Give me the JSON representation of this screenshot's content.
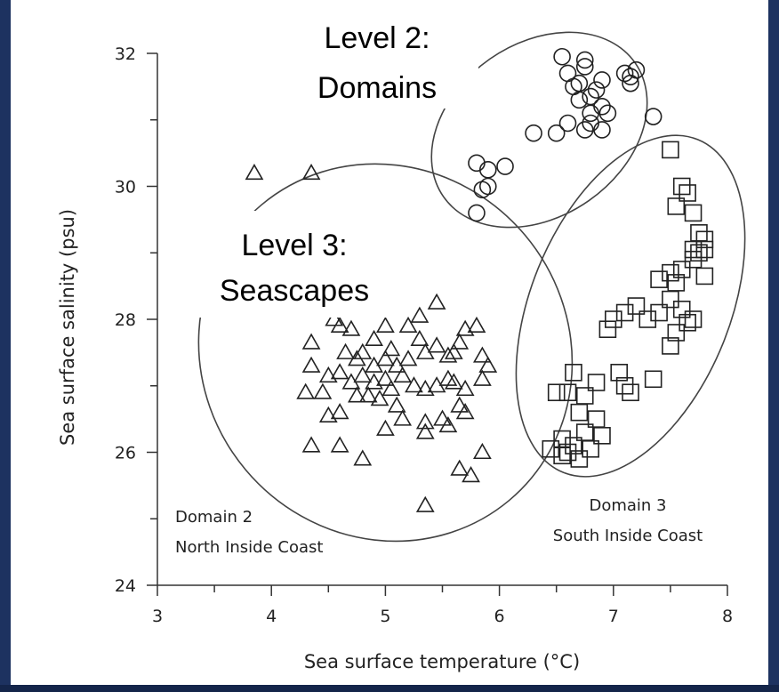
{
  "chart_data": {
    "type": "scatter",
    "xlabel": "Sea surface temperature (°C)",
    "ylabel": "Sea surface salinity (psu)",
    "xlim": [
      3,
      8
    ],
    "ylim": [
      24,
      32
    ],
    "xticks": [
      "3",
      "4",
      "5",
      "6",
      "7",
      "8"
    ],
    "yticks": [
      "24",
      "26",
      "28",
      "30",
      "32"
    ],
    "grid": false,
    "overlay_labels": {
      "level2_line1": "Level 2:",
      "level2_line2": "Domains",
      "level3_line1": "Level 3:",
      "level3_line2": "Seascapes"
    },
    "domain_labels": {
      "domain2_line1": "Domain 2",
      "domain2_line2": "North Inside Coast",
      "domain3_line1": "Domain 3",
      "domain3_line2": "South Inside Coast"
    },
    "series": [
      {
        "marker": "circle",
        "points": [
          [
            6.55,
            31.95
          ],
          [
            6.6,
            31.7
          ],
          [
            6.65,
            31.5
          ],
          [
            6.7,
            31.55
          ],
          [
            6.7,
            31.3
          ],
          [
            6.75,
            31.8
          ],
          [
            6.75,
            31.9
          ],
          [
            6.8,
            31.35
          ],
          [
            6.8,
            31.1
          ],
          [
            6.85,
            31.45
          ],
          [
            6.9,
            31.6
          ],
          [
            6.9,
            31.2
          ],
          [
            6.95,
            31.1
          ],
          [
            6.8,
            30.95
          ],
          [
            6.75,
            30.85
          ],
          [
            6.9,
            30.85
          ],
          [
            6.6,
            30.95
          ],
          [
            6.5,
            30.8
          ],
          [
            6.3,
            30.8
          ],
          [
            7.1,
            31.7
          ],
          [
            7.15,
            31.55
          ],
          [
            7.2,
            31.75
          ],
          [
            7.15,
            31.65
          ],
          [
            7.35,
            31.05
          ],
          [
            5.8,
            30.35
          ],
          [
            5.9,
            30.25
          ],
          [
            6.05,
            30.3
          ],
          [
            5.9,
            30.0
          ],
          [
            5.85,
            29.95
          ],
          [
            5.8,
            29.6
          ]
        ]
      },
      {
        "marker": "triangle",
        "points": [
          [
            3.85,
            30.2
          ],
          [
            4.35,
            30.2
          ],
          [
            4.55,
            28.0
          ],
          [
            4.6,
            27.9
          ],
          [
            4.7,
            27.85
          ],
          [
            4.65,
            27.5
          ],
          [
            4.75,
            27.4
          ],
          [
            4.9,
            27.3
          ],
          [
            5.0,
            27.4
          ],
          [
            5.05,
            27.55
          ],
          [
            5.1,
            27.3
          ],
          [
            5.2,
            27.4
          ],
          [
            5.3,
            27.7
          ],
          [
            5.35,
            27.5
          ],
          [
            5.45,
            27.6
          ],
          [
            5.55,
            27.45
          ],
          [
            5.6,
            27.5
          ],
          [
            5.65,
            27.65
          ],
          [
            5.7,
            27.85
          ],
          [
            5.8,
            27.9
          ],
          [
            5.85,
            27.45
          ],
          [
            5.9,
            27.3
          ],
          [
            5.45,
            28.25
          ],
          [
            5.3,
            28.05
          ],
          [
            5.2,
            27.9
          ],
          [
            5.0,
            27.9
          ],
          [
            4.9,
            27.7
          ],
          [
            4.8,
            27.5
          ],
          [
            4.35,
            27.65
          ],
          [
            4.35,
            27.3
          ],
          [
            4.3,
            26.9
          ],
          [
            4.45,
            26.9
          ],
          [
            4.5,
            27.15
          ],
          [
            4.6,
            27.2
          ],
          [
            4.7,
            27.05
          ],
          [
            4.8,
            27.15
          ],
          [
            4.85,
            26.85
          ],
          [
            4.9,
            27.05
          ],
          [
            5.0,
            27.1
          ],
          [
            5.05,
            26.95
          ],
          [
            5.15,
            27.15
          ],
          [
            5.25,
            27.0
          ],
          [
            5.35,
            26.95
          ],
          [
            5.45,
            27.0
          ],
          [
            5.55,
            27.1
          ],
          [
            5.6,
            27.05
          ],
          [
            5.7,
            26.95
          ],
          [
            5.85,
            27.1
          ],
          [
            5.5,
            26.5
          ],
          [
            5.35,
            26.45
          ],
          [
            5.35,
            26.3
          ],
          [
            5.15,
            26.5
          ],
          [
            5.0,
            26.35
          ],
          [
            4.95,
            26.8
          ],
          [
            4.75,
            26.85
          ],
          [
            4.5,
            26.55
          ],
          [
            4.35,
            26.1
          ],
          [
            4.6,
            26.1
          ],
          [
            4.8,
            25.9
          ],
          [
            5.65,
            26.7
          ],
          [
            5.7,
            26.6
          ],
          [
            5.55,
            26.4
          ],
          [
            5.85,
            26.0
          ],
          [
            5.65,
            25.75
          ],
          [
            5.75,
            25.65
          ],
          [
            5.35,
            25.2
          ],
          [
            4.6,
            26.6
          ],
          [
            5.1,
            26.7
          ]
        ]
      },
      {
        "marker": "square",
        "points": [
          [
            7.5,
            30.55
          ],
          [
            7.6,
            30.0
          ],
          [
            7.65,
            29.9
          ],
          [
            7.7,
            29.6
          ],
          [
            7.55,
            29.7
          ],
          [
            7.75,
            29.3
          ],
          [
            7.8,
            29.2
          ],
          [
            7.75,
            29.0
          ],
          [
            7.7,
            28.9
          ],
          [
            7.6,
            28.75
          ],
          [
            7.8,
            28.65
          ],
          [
            7.7,
            29.05
          ],
          [
            7.8,
            29.05
          ],
          [
            7.5,
            28.7
          ],
          [
            7.55,
            28.55
          ],
          [
            7.4,
            28.6
          ],
          [
            7.5,
            28.3
          ],
          [
            7.6,
            28.15
          ],
          [
            7.65,
            27.95
          ],
          [
            7.55,
            27.8
          ],
          [
            7.5,
            27.6
          ],
          [
            7.4,
            28.1
          ],
          [
            7.3,
            28.0
          ],
          [
            7.2,
            28.2
          ],
          [
            7.1,
            28.1
          ],
          [
            7.0,
            28.0
          ],
          [
            6.95,
            27.85
          ],
          [
            7.7,
            28.0
          ],
          [
            7.35,
            27.1
          ],
          [
            7.05,
            27.2
          ],
          [
            7.1,
            27.0
          ],
          [
            7.15,
            26.9
          ],
          [
            6.85,
            27.05
          ],
          [
            6.75,
            26.85
          ],
          [
            6.65,
            27.2
          ],
          [
            6.6,
            26.9
          ],
          [
            6.5,
            26.9
          ],
          [
            6.7,
            26.6
          ],
          [
            6.85,
            26.5
          ],
          [
            6.9,
            26.25
          ],
          [
            6.75,
            26.3
          ],
          [
            6.65,
            26.1
          ],
          [
            6.55,
            26.2
          ],
          [
            6.45,
            26.05
          ],
          [
            6.55,
            25.95
          ],
          [
            6.7,
            25.9
          ],
          [
            6.8,
            26.05
          ],
          [
            6.6,
            26.0
          ]
        ]
      }
    ],
    "ellipses": [
      {
        "name": "level2",
        "cx": 6.35,
        "cy": 30.85,
        "rx_deg": 0,
        "w": 2.05,
        "h": 2.6,
        "angle": -35
      },
      {
        "name": "level3",
        "cx": 5.0,
        "cy": 27.5,
        "w": 3.2,
        "h": 5.8,
        "angle": -40
      },
      {
        "name": "domain3",
        "cx": 7.15,
        "cy": 28.2,
        "w": 1.75,
        "h": 5.4,
        "angle": 22
      }
    ]
  }
}
